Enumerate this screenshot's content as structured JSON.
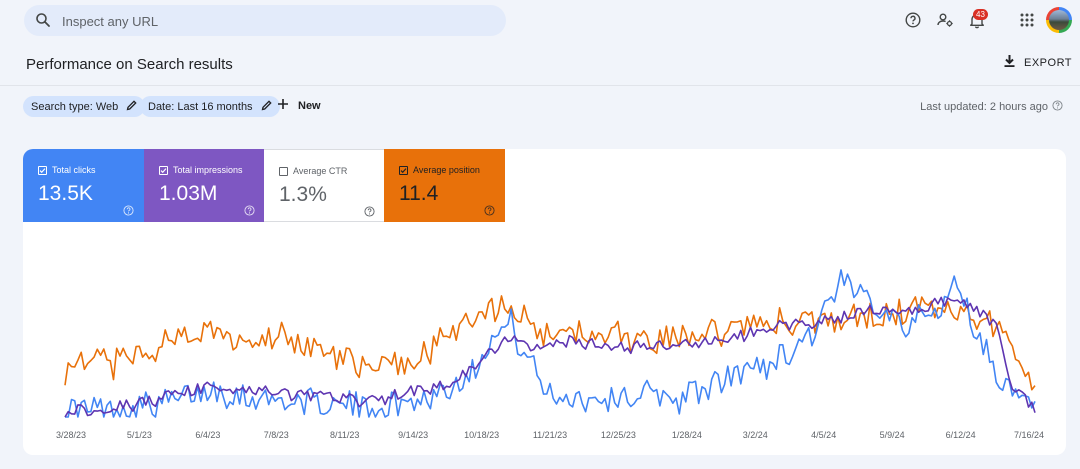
{
  "header": {
    "search_placeholder": "Inspect any URL",
    "notification_count": "43",
    "icons": [
      "search-icon",
      "help-icon",
      "user-settings-icon",
      "notifications-icon",
      "apps-grid-icon",
      "avatar"
    ]
  },
  "page": {
    "title": "Performance on Search results",
    "export_label": "EXPORT"
  },
  "filters": {
    "search_type": "Search type: Web",
    "date": "Date: Last 16 months",
    "new_label": "New",
    "last_updated": "Last updated: 2 hours ago"
  },
  "metrics": [
    {
      "label": "Total clicks",
      "value": "13.5K",
      "checked": true,
      "color": "#4285f4"
    },
    {
      "label": "Total impressions",
      "value": "1.03M",
      "checked": true,
      "color": "#7e57c2"
    },
    {
      "label": "Average CTR",
      "value": "1.3%",
      "checked": false,
      "color": "#ffffff"
    },
    {
      "label": "Average position",
      "value": "11.4",
      "checked": true,
      "color": "#e8710a"
    }
  ],
  "chart_data": {
    "type": "line",
    "x_ticks": [
      "3/28/23",
      "5/1/23",
      "6/4/23",
      "7/8/23",
      "8/11/23",
      "9/14/23",
      "10/18/23",
      "11/21/23",
      "12/25/23",
      "1/28/24",
      "3/2/24",
      "4/5/24",
      "5/9/24",
      "6/12/24",
      "7/16/24"
    ],
    "x_range": [
      "3/28/23",
      "7/26/24"
    ],
    "y_axis_visible": false,
    "grid": false,
    "series": [
      {
        "name": "Total clicks",
        "color": "#4285f4",
        "keyframes": [
          [
            0,
            0.04
          ],
          [
            0.05,
            0.05
          ],
          [
            0.1,
            0.08
          ],
          [
            0.15,
            0.18
          ],
          [
            0.2,
            0.12
          ],
          [
            0.27,
            0.08
          ],
          [
            0.33,
            0.06
          ],
          [
            0.37,
            0.12
          ],
          [
            0.4,
            0.2
          ],
          [
            0.42,
            0.32
          ],
          [
            0.44,
            0.52
          ],
          [
            0.46,
            0.62
          ],
          [
            0.475,
            0.4
          ],
          [
            0.5,
            0.14
          ],
          [
            0.55,
            0.12
          ],
          [
            0.6,
            0.15
          ],
          [
            0.63,
            0.12
          ],
          [
            0.66,
            0.18
          ],
          [
            0.7,
            0.3
          ],
          [
            0.74,
            0.4
          ],
          [
            0.77,
            0.56
          ],
          [
            0.8,
            0.88
          ],
          [
            0.83,
            0.78
          ],
          [
            0.87,
            0.62
          ],
          [
            0.9,
            0.7
          ],
          [
            0.92,
            0.9
          ],
          [
            0.94,
            0.55
          ],
          [
            0.96,
            0.3
          ],
          [
            0.98,
            0.12
          ],
          [
            1,
            0.03
          ]
        ]
      },
      {
        "name": "Total impressions",
        "color": "#5e35b1",
        "keyframes": [
          [
            0,
            0.04
          ],
          [
            0.05,
            0.06
          ],
          [
            0.1,
            0.12
          ],
          [
            0.15,
            0.2
          ],
          [
            0.2,
            0.17
          ],
          [
            0.27,
            0.13
          ],
          [
            0.31,
            0.1
          ],
          [
            0.35,
            0.16
          ],
          [
            0.4,
            0.22
          ],
          [
            0.43,
            0.38
          ],
          [
            0.46,
            0.52
          ],
          [
            0.49,
            0.45
          ],
          [
            0.52,
            0.5
          ],
          [
            0.56,
            0.46
          ],
          [
            0.62,
            0.47
          ],
          [
            0.67,
            0.5
          ],
          [
            0.72,
            0.58
          ],
          [
            0.76,
            0.63
          ],
          [
            0.8,
            0.66
          ],
          [
            0.83,
            0.72
          ],
          [
            0.87,
            0.7
          ],
          [
            0.91,
            0.78
          ],
          [
            0.94,
            0.72
          ],
          [
            0.96,
            0.6
          ],
          [
            0.975,
            0.2
          ],
          [
            1,
            0.05
          ]
        ]
      },
      {
        "name": "Average position",
        "color": "#e8710a",
        "keyframes": [
          [
            0,
            0.32
          ],
          [
            0.03,
            0.35
          ],
          [
            0.06,
            0.36
          ],
          [
            0.1,
            0.48
          ],
          [
            0.13,
            0.58
          ],
          [
            0.18,
            0.5
          ],
          [
            0.22,
            0.56
          ],
          [
            0.27,
            0.42
          ],
          [
            0.3,
            0.36
          ],
          [
            0.33,
            0.33
          ],
          [
            0.35,
            0.36
          ],
          [
            0.37,
            0.42
          ],
          [
            0.4,
            0.55
          ],
          [
            0.43,
            0.68
          ],
          [
            0.45,
            0.72
          ],
          [
            0.47,
            0.7
          ],
          [
            0.5,
            0.5
          ],
          [
            0.53,
            0.56
          ],
          [
            0.56,
            0.55
          ],
          [
            0.6,
            0.52
          ],
          [
            0.65,
            0.55
          ],
          [
            0.7,
            0.6
          ],
          [
            0.75,
            0.64
          ],
          [
            0.8,
            0.65
          ],
          [
            0.84,
            0.66
          ],
          [
            0.88,
            0.72
          ],
          [
            0.92,
            0.7
          ],
          [
            0.95,
            0.64
          ],
          [
            0.97,
            0.55
          ],
          [
            0.985,
            0.42
          ],
          [
            1,
            0.2
          ]
        ]
      }
    ]
  }
}
